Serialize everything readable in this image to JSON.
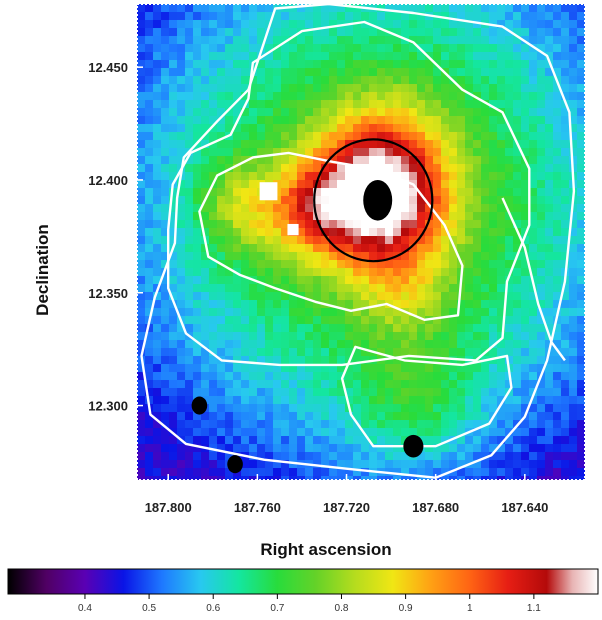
{
  "chart_data": {
    "type": "heatmap",
    "xlabel": "Right ascension",
    "ylabel": "Declination",
    "xlim": [
      187.814,
      187.613
    ],
    "ylim": [
      12.267,
      12.478
    ],
    "x_ticks": [
      {
        "value": 187.8,
        "label": "187.800"
      },
      {
        "value": 187.76,
        "label": "187.760"
      },
      {
        "value": 187.72,
        "label": "187.720"
      },
      {
        "value": 187.68,
        "label": "187.680"
      },
      {
        "value": 187.64,
        "label": "187.640"
      }
    ],
    "y_ticks": [
      {
        "value": 12.3,
        "label": "12.300"
      },
      {
        "value": 12.35,
        "label": "12.350"
      },
      {
        "value": 12.4,
        "label": "12.400"
      },
      {
        "value": 12.45,
        "label": "12.450"
      }
    ],
    "colorbar": {
      "range": [
        0.28,
        1.2
      ],
      "ticks": [
        {
          "value": 0.4,
          "label": "0.4"
        },
        {
          "value": 0.5,
          "label": "0.5"
        },
        {
          "value": 0.6,
          "label": "0.6"
        },
        {
          "value": 0.7,
          "label": "0.7"
        },
        {
          "value": 0.8,
          "label": "0.8"
        },
        {
          "value": 0.9,
          "label": "0.9"
        },
        {
          "value": 1.0,
          "label": "1"
        },
        {
          "value": 1.1,
          "label": "1.1"
        }
      ],
      "colormap": [
        {
          "v": 0.28,
          "c": "#000000"
        },
        {
          "v": 0.34,
          "c": "#500064"
        },
        {
          "v": 0.4,
          "c": "#5a00b4"
        },
        {
          "v": 0.46,
          "c": "#0a14e6"
        },
        {
          "v": 0.52,
          "c": "#1e78ff"
        },
        {
          "v": 0.58,
          "c": "#28c8f0"
        },
        {
          "v": 0.64,
          "c": "#14e6a0"
        },
        {
          "v": 0.7,
          "c": "#28dc3c"
        },
        {
          "v": 0.76,
          "c": "#64d228"
        },
        {
          "v": 0.82,
          "c": "#b4dc1e"
        },
        {
          "v": 0.88,
          "c": "#f0e614"
        },
        {
          "v": 0.94,
          "c": "#ffa014"
        },
        {
          "v": 1.0,
          "c": "#ff6414"
        },
        {
          "v": 1.06,
          "c": "#e61e14"
        },
        {
          "v": 1.12,
          "c": "#b40a0a"
        },
        {
          "v": 1.16,
          "c": "#e8b4b4"
        },
        {
          "v": 1.2,
          "c": "#ffffff"
        }
      ]
    },
    "field_components": [
      {
        "ra": 187.706,
        "dec": 12.392,
        "amp": 0.45,
        "width": 0.03
      },
      {
        "ra": 187.735,
        "dec": 12.388,
        "amp": 0.18,
        "width": 0.018
      },
      {
        "ra": 187.77,
        "dec": 12.392,
        "amp": 0.12,
        "width": 0.018
      },
      {
        "ra": 187.694,
        "dec": 12.35,
        "amp": 0.1,
        "width": 0.02
      },
      {
        "ra": 187.7,
        "dec": 12.42,
        "amp": 0.08,
        "width": 0.025
      },
      {
        "ra": 187.76,
        "dec": 12.38,
        "amp": 0.08,
        "width": 0.02
      },
      {
        "ra": 187.69,
        "dec": 12.3,
        "amp": 0.12,
        "width": 0.03
      }
    ],
    "field_base": 0.86,
    "field_falloff": 0.145,
    "field_min": 0.44,
    "masked_sources": [
      {
        "ra": 187.706,
        "dec": 12.391,
        "r_ra": 0.0065,
        "r_dec": 0.009
      },
      {
        "ra": 187.786,
        "dec": 12.3,
        "r_ra": 0.0035,
        "r_dec": 0.004
      },
      {
        "ra": 187.77,
        "dec": 12.274,
        "r_ra": 0.0035,
        "r_dec": 0.004
      },
      {
        "ra": 187.69,
        "dec": 12.282,
        "r_ra": 0.0045,
        "r_dec": 0.005
      }
    ],
    "white_patches": [
      {
        "ra": 187.755,
        "dec": 12.395,
        "r_ra": 0.004,
        "r_dec": 0.004
      },
      {
        "ra": 187.744,
        "dec": 12.378,
        "r_ra": 0.0025,
        "r_dec": 0.0025
      }
    ],
    "circle_marker": {
      "ra": 187.708,
      "dec": 12.391,
      "r_ra": 0.0265,
      "r_dec": 0.027
    },
    "contours": [
      {
        "name": "outer",
        "points": [
          [
            187.752,
            12.476
          ],
          [
            187.728,
            12.478
          ],
          [
            187.69,
            12.474
          ],
          [
            187.65,
            12.468
          ],
          [
            187.63,
            12.455
          ],
          [
            187.62,
            12.43
          ],
          [
            187.618,
            12.395
          ],
          [
            187.622,
            12.355
          ],
          [
            187.63,
            12.32
          ],
          [
            187.64,
            12.295
          ],
          [
            187.655,
            12.278
          ],
          [
            187.68,
            12.268
          ],
          [
            187.72,
            12.272
          ],
          [
            187.757,
            12.276
          ],
          [
            187.792,
            12.283
          ],
          [
            187.808,
            12.296
          ],
          [
            187.812,
            12.322
          ],
          [
            187.806,
            12.348
          ],
          [
            187.797,
            12.372
          ],
          [
            187.796,
            12.392
          ],
          [
            187.793,
            12.41
          ],
          [
            187.778,
            12.426
          ],
          [
            187.764,
            12.44
          ],
          [
            187.758,
            12.458
          ]
        ]
      },
      {
        "name": "middle",
        "points": [
          [
            187.762,
            12.452
          ],
          [
            187.74,
            12.466
          ],
          [
            187.712,
            12.47
          ],
          [
            187.69,
            12.461
          ],
          [
            187.668,
            12.44
          ],
          [
            187.65,
            12.43
          ],
          [
            187.638,
            12.405
          ],
          [
            187.638,
            12.38
          ],
          [
            187.648,
            12.355
          ],
          [
            187.65,
            12.33
          ],
          [
            187.662,
            12.32
          ],
          [
            187.692,
            12.322
          ],
          [
            187.722,
            12.318
          ],
          [
            187.75,
            12.318
          ],
          [
            187.776,
            12.32
          ],
          [
            187.792,
            12.332
          ],
          [
            187.8,
            12.352
          ],
          [
            187.8,
            12.378
          ],
          [
            187.798,
            12.398
          ],
          [
            187.79,
            12.412
          ],
          [
            187.772,
            12.42
          ],
          [
            187.764,
            12.436
          ]
        ]
      },
      {
        "name": "inner",
        "points": [
          [
            187.762,
            12.41
          ],
          [
            187.746,
            12.412
          ],
          [
            187.726,
            12.408
          ],
          [
            187.708,
            12.405
          ],
          [
            187.69,
            12.398
          ],
          [
            187.676,
            12.38
          ],
          [
            187.668,
            12.362
          ],
          [
            187.67,
            12.34
          ],
          [
            187.685,
            12.338
          ],
          [
            187.702,
            12.345
          ],
          [
            187.718,
            12.342
          ],
          [
            187.734,
            12.346
          ],
          [
            187.752,
            12.352
          ],
          [
            187.768,
            12.358
          ],
          [
            187.782,
            12.366
          ],
          [
            187.786,
            12.386
          ],
          [
            187.778,
            12.402
          ]
        ]
      },
      {
        "name": "south-filament",
        "points": [
          [
            187.716,
            12.326
          ],
          [
            187.694,
            12.32
          ],
          [
            187.668,
            12.318
          ],
          [
            187.648,
            12.322
          ],
          [
            187.646,
            12.308
          ],
          [
            187.656,
            12.292
          ],
          [
            187.68,
            12.282
          ],
          [
            187.708,
            12.282
          ],
          [
            187.718,
            12.296
          ],
          [
            187.722,
            12.312
          ]
        ]
      },
      {
        "name": "east-ridge",
        "points": [
          [
            187.65,
            12.392
          ],
          [
            187.64,
            12.37
          ],
          [
            187.634,
            12.345
          ],
          [
            187.628,
            12.328
          ],
          [
            187.622,
            12.32
          ]
        ]
      }
    ]
  }
}
